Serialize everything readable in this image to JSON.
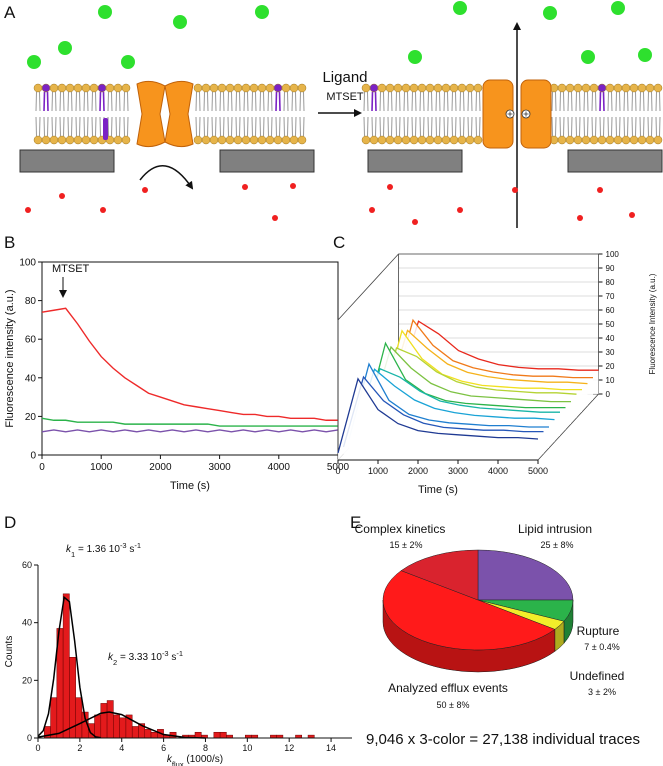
{
  "panel_a": {
    "label": "A",
    "ligand": "Ligand",
    "mtset": "MTSET"
  },
  "chart_data": [
    {
      "type": "line",
      "panel": "B",
      "annotation": "MTSET",
      "x_label": "Time (s)",
      "y_label": "Fluorescence intensity (a.u.)",
      "x": [
        0,
        200,
        400,
        600,
        800,
        1000,
        1200,
        1400,
        1600,
        1800,
        2000,
        2200,
        2400,
        2600,
        2800,
        3000,
        3200,
        3400,
        3600,
        3800,
        4000,
        4200,
        4400,
        4600,
        4800,
        5000
      ],
      "series": [
        {
          "color": "#ee2a2a",
          "values": [
            74,
            75,
            76,
            68,
            59,
            51,
            45,
            40,
            36,
            32,
            30,
            28,
            26,
            25,
            24,
            23,
            22,
            21,
            21,
            20,
            20,
            19,
            19,
            19,
            18,
            18
          ]
        },
        {
          "color": "#2bb34a",
          "values": [
            19,
            18,
            18,
            17,
            17,
            17,
            17,
            16,
            16,
            16,
            16,
            16,
            16,
            16,
            16,
            15,
            15,
            15,
            15,
            15,
            15,
            15,
            15,
            15,
            15,
            15
          ]
        },
        {
          "color": "#7b52ab",
          "values": [
            12,
            13,
            12,
            13,
            12,
            13,
            12,
            13,
            12,
            13,
            12,
            13,
            12,
            13,
            12,
            13,
            12,
            13,
            12,
            13,
            12,
            13,
            12,
            13,
            12,
            13
          ]
        }
      ],
      "xlim": [
        0,
        5000
      ],
      "xticks": [
        0,
        1000,
        2000,
        3000,
        4000,
        5000
      ],
      "ylim": [
        0,
        100
      ],
      "yticks": [
        0,
        20,
        40,
        60,
        80,
        100
      ]
    },
    {
      "type": "waterfall",
      "panel": "C",
      "x_label": "Time (s)",
      "y_label": "Fluorescence Intensity (a.u.)",
      "x": [
        0,
        500,
        1000,
        1500,
        2000,
        2500,
        3000,
        3500,
        4000,
        4500,
        5000
      ],
      "series": [
        {
          "color": "#1f3a93",
          "values": [
            5,
            58,
            36,
            26,
            21,
            19,
            18,
            17,
            16,
            16,
            15
          ]
        },
        {
          "color": "#2456b8",
          "values": [
            5,
            55,
            38,
            28,
            22,
            19,
            18,
            17,
            17,
            16,
            16
          ]
        },
        {
          "color": "#1f7fd0",
          "values": [
            6,
            60,
            34,
            24,
            20,
            18,
            17,
            16,
            16,
            15,
            15
          ]
        },
        {
          "color": "#19a3d6",
          "values": [
            6,
            52,
            40,
            30,
            24,
            21,
            19,
            18,
            17,
            17,
            16
          ]
        },
        {
          "color": "#19b5a8",
          "values": [
            5,
            48,
            42,
            32,
            25,
            22,
            20,
            19,
            18,
            17,
            17
          ]
        },
        {
          "color": "#2bb34a",
          "values": [
            7,
            62,
            36,
            26,
            21,
            19,
            18,
            17,
            16,
            16,
            16
          ]
        },
        {
          "color": "#7cc242",
          "values": [
            6,
            55,
            40,
            29,
            23,
            20,
            19,
            18,
            17,
            16,
            16
          ]
        },
        {
          "color": "#b5d334",
          "values": [
            5,
            50,
            44,
            33,
            26,
            22,
            20,
            19,
            18,
            18,
            17
          ]
        },
        {
          "color": "#f0e020",
          "values": [
            6,
            58,
            38,
            27,
            22,
            19,
            18,
            17,
            17,
            16,
            16
          ]
        },
        {
          "color": "#f5b21b",
          "values": [
            6,
            54,
            41,
            30,
            24,
            21,
            19,
            18,
            17,
            17,
            16
          ]
        },
        {
          "color": "#f07a1a",
          "values": [
            5,
            57,
            39,
            28,
            23,
            20,
            18,
            17,
            17,
            16,
            16
          ]
        },
        {
          "color": "#e8281c",
          "values": [
            6,
            52,
            43,
            31,
            25,
            21,
            19,
            18,
            18,
            17,
            17
          ]
        }
      ],
      "xlim": [
        0,
        5000
      ],
      "xticks": [
        0,
        1000,
        2000,
        3000,
        4000,
        5000
      ],
      "ylim": [
        0,
        100
      ],
      "yticks": [
        0,
        10,
        20,
        30,
        40,
        50,
        60,
        70,
        80,
        90,
        100
      ]
    },
    {
      "type": "histogram",
      "panel": "D",
      "color": "#e31a1c",
      "x_label_parts": [
        "k",
        "flux",
        " (1000/s)"
      ],
      "y_label": "Counts",
      "annotations": [
        [
          "k",
          "1",
          " = 1.36 10",
          "-3",
          " s",
          "-1"
        ],
        [
          "k",
          "2",
          " = 3.33 10",
          "-3",
          " s",
          "-1"
        ]
      ],
      "bins": [
        0.3,
        0.6,
        0.9,
        1.2,
        1.5,
        1.8,
        2.1,
        2.4,
        2.7,
        3.0,
        3.3,
        3.6,
        3.9,
        4.2,
        4.5,
        4.8,
        5.1,
        5.4,
        5.7,
        6.0,
        6.3,
        6.6,
        6.9,
        7.2,
        7.5,
        7.8,
        8.1,
        8.4,
        8.7,
        9.0,
        9.3,
        9.6,
        9.9,
        10.2,
        10.5,
        10.8,
        11.1,
        11.4,
        11.7,
        12.0,
        12.3,
        12.6,
        12.9,
        13.2
      ],
      "values": [
        4,
        14,
        38,
        50,
        28,
        14,
        9,
        5,
        8,
        12,
        13,
        8,
        7,
        8,
        4,
        5,
        3,
        2,
        3,
        1,
        2,
        0,
        1,
        1,
        2,
        1,
        0,
        2,
        2,
        1,
        0,
        0,
        1,
        1,
        0,
        0,
        1,
        1,
        0,
        0,
        1,
        0,
        1
      ],
      "fits": [
        {
          "color": "#000000",
          "x": [
            0,
            0.25,
            0.5,
            0.75,
            1.0,
            1.25,
            1.5,
            1.75,
            2.0,
            2.25,
            2.5,
            2.75,
            3.0
          ],
          "values": [
            0.6,
            2.5,
            8.4,
            20.6,
            37,
            48.8,
            47.3,
            33.7,
            17.6,
            6.8,
            1.9,
            0.4,
            0.1
          ]
        },
        {
          "color": "#000000",
          "x": [
            0,
            1,
            2,
            3,
            3.4,
            4,
            5,
            6,
            7,
            8
          ],
          "values": [
            0.3,
            1.6,
            5.0,
            8.6,
            9,
            8.1,
            4.2,
            1.2,
            0.2,
            0
          ]
        }
      ],
      "xlim": [
        0,
        15
      ],
      "xticks": [
        0,
        2,
        4,
        6,
        8,
        10,
        12,
        14
      ],
      "ylim": [
        0,
        60
      ],
      "yticks": [
        0,
        20,
        40,
        60
      ]
    },
    {
      "type": "pie",
      "panel": "E",
      "categories": [
        "Lipid intrusion",
        "Rupture",
        "Undefined",
        "Analyzed efflux events",
        "Complex kinetics"
      ],
      "values": [
        25,
        7,
        3,
        50,
        15
      ],
      "value_labels": [
        "25 ± 8%",
        "7 ± 0.4%",
        "3 ± 2%",
        "50 ± 8%",
        "15 ± 2%"
      ],
      "colors": [
        "#7b52ab",
        "#2bb34a",
        "#f2ee2a",
        "#ff1a1a",
        "#d9232e"
      ],
      "footnote": "9,046 x 3-color = 27,138 individual traces"
    }
  ]
}
